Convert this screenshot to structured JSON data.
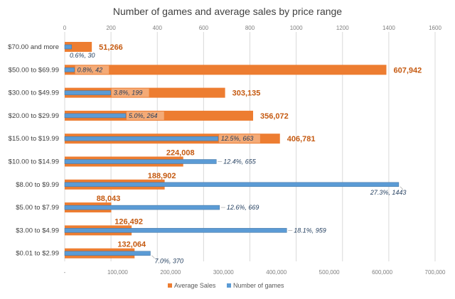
{
  "chart_data": {
    "type": "bar",
    "orientation": "horizontal",
    "title": "Number of games and average sales by price range",
    "categories": [
      "$70.00 and more",
      "$50.00 to $69.99",
      "$30.00 to $49.99",
      "$20.00 to $29.99",
      "$15.00 to $19.99",
      "$10.00 to $14.99",
      "$8.00 to $9.99",
      "$5.00 to $7.99",
      "$3.00 to $4.99",
      "$0.01 to $2.99"
    ],
    "series": [
      {
        "name": "Average Sales",
        "axis": "bottom",
        "color": "#ED7D31",
        "values": [
          51266,
          607942,
          303135,
          356072,
          406781,
          224008,
          188902,
          88043,
          126492,
          132064
        ],
        "labels": [
          "51,266",
          "607,942",
          "303,135",
          "356,072",
          "406,781",
          "224,008",
          "188,902",
          "88,043",
          "126,492",
          "132,064"
        ]
      },
      {
        "name": "Number of games",
        "axis": "top",
        "color": "#5B9BD5",
        "values": [
          30,
          42,
          199,
          264,
          663,
          655,
          1443,
          669,
          959,
          370
        ],
        "percent": [
          0.6,
          0.8,
          3.8,
          5.0,
          12.5,
          12.4,
          27.3,
          12.6,
          18.1,
          7.0
        ],
        "labels": [
          "0.6%, 30",
          "0.8%, 42",
          "3.8%, 199",
          "5.0%, 264",
          "12.5%, 663",
          "12.4%, 655",
          "27.3%, 1443",
          "12.6%, 669",
          "18.1%, 959",
          "7.0%, 370"
        ]
      }
    ],
    "top_axis": {
      "min": 0,
      "max": 1600,
      "ticks": [
        "0",
        "200",
        "400",
        "600",
        "800",
        "1000",
        "1200",
        "1400",
        "1600"
      ]
    },
    "bottom_axis": {
      "min": 0,
      "max": 700000,
      "ticks": [
        "-",
        "100,000",
        "200,000",
        "300,000",
        "400,000",
        "500,000",
        "600,000",
        "700,000"
      ]
    },
    "grid": true,
    "legend": {
      "position": "bottom",
      "entries": [
        "Average Sales",
        "Number of games"
      ]
    }
  }
}
